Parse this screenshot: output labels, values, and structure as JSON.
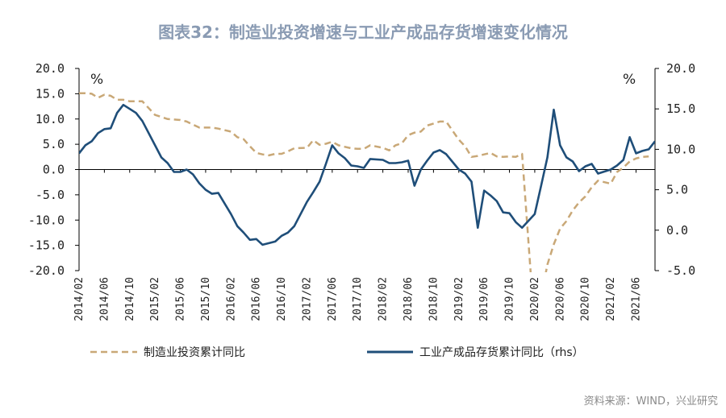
{
  "chart_data": {
    "type": "line",
    "title": "图表32：制造业投资增速与工业产成品存货增速变化情况",
    "left_unit": "%",
    "right_unit": "%",
    "left_axis": {
      "ylim": [
        -20,
        20
      ],
      "ticks": [
        "20.0",
        "15.0",
        "10.0",
        "5.0",
        "0.0",
        "-5.0",
        "-10.0",
        "-15.0",
        "-20.0"
      ]
    },
    "right_axis": {
      "ylim": [
        -5,
        20
      ],
      "ticks": [
        "20.0",
        "15.0",
        "10.0",
        "5.0",
        "0.0",
        "-5.0"
      ]
    },
    "x_labels": [
      "2014/02",
      "2014/06",
      "2014/10",
      "2015/02",
      "2015/06",
      "2015/10",
      "2016/02",
      "2016/06",
      "2016/10",
      "2017/02",
      "2017/06",
      "2017/10",
      "2018/02",
      "2018/06",
      "2018/10",
      "2019/02",
      "2019/06",
      "2019/10",
      "2020/02",
      "2020/06",
      "2020/10",
      "2021/02",
      "2021/06"
    ],
    "series": [
      {
        "name": "制造业投资累计同比",
        "axis": "left",
        "color": "#c9a877",
        "style": "dashed",
        "values": [
          {
            "x": "2014/02",
            "y": 15.1
          },
          {
            "x": "2014/03",
            "y": 15.1
          },
          {
            "x": "2014/04",
            "y": 15.0
          },
          {
            "x": "2014/05",
            "y": 14.2
          },
          {
            "x": "2014/06",
            "y": 14.8
          },
          {
            "x": "2014/07",
            "y": 14.6
          },
          {
            "x": "2014/08",
            "y": 13.8
          },
          {
            "x": "2014/09",
            "y": 13.8
          },
          {
            "x": "2014/10",
            "y": 13.5
          },
          {
            "x": "2014/11",
            "y": 13.5
          },
          {
            "x": "2014/12",
            "y": 13.5
          },
          {
            "x": "2015/02",
            "y": 10.8
          },
          {
            "x": "2015/03",
            "y": 10.4
          },
          {
            "x": "2015/04",
            "y": 10.0
          },
          {
            "x": "2015/05",
            "y": 9.9
          },
          {
            "x": "2015/06",
            "y": 9.8
          },
          {
            "x": "2015/07",
            "y": 9.5
          },
          {
            "x": "2015/08",
            "y": 8.9
          },
          {
            "x": "2015/09",
            "y": 8.3
          },
          {
            "x": "2015/10",
            "y": 8.3
          },
          {
            "x": "2015/11",
            "y": 8.3
          },
          {
            "x": "2015/12",
            "y": 8.1
          },
          {
            "x": "2016/02",
            "y": 7.5
          },
          {
            "x": "2016/03",
            "y": 6.4
          },
          {
            "x": "2016/04",
            "y": 6.0
          },
          {
            "x": "2016/05",
            "y": 4.6
          },
          {
            "x": "2016/06",
            "y": 3.3
          },
          {
            "x": "2016/07",
            "y": 3.0
          },
          {
            "x": "2016/08",
            "y": 2.8
          },
          {
            "x": "2016/09",
            "y": 3.1
          },
          {
            "x": "2016/10",
            "y": 3.1
          },
          {
            "x": "2016/11",
            "y": 3.6
          },
          {
            "x": "2016/12",
            "y": 4.2
          },
          {
            "x": "2017/02",
            "y": 4.3
          },
          {
            "x": "2017/03",
            "y": 5.8
          },
          {
            "x": "2017/04",
            "y": 4.9
          },
          {
            "x": "2017/05",
            "y": 5.1
          },
          {
            "x": "2017/06",
            "y": 5.5
          },
          {
            "x": "2017/07",
            "y": 4.8
          },
          {
            "x": "2017/08",
            "y": 4.5
          },
          {
            "x": "2017/09",
            "y": 4.2
          },
          {
            "x": "2017/10",
            "y": 4.1
          },
          {
            "x": "2017/11",
            "y": 4.1
          },
          {
            "x": "2017/12",
            "y": 4.8
          },
          {
            "x": "2018/02",
            "y": 4.3
          },
          {
            "x": "2018/03",
            "y": 3.8
          },
          {
            "x": "2018/04",
            "y": 4.8
          },
          {
            "x": "2018/05",
            "y": 5.2
          },
          {
            "x": "2018/06",
            "y": 6.8
          },
          {
            "x": "2018/07",
            "y": 7.3
          },
          {
            "x": "2018/08",
            "y": 7.5
          },
          {
            "x": "2018/09",
            "y": 8.7
          },
          {
            "x": "2018/10",
            "y": 9.1
          },
          {
            "x": "2018/11",
            "y": 9.5
          },
          {
            "x": "2018/12",
            "y": 9.5
          },
          {
            "x": "2019/02",
            "y": 5.9
          },
          {
            "x": "2019/03",
            "y": 4.6
          },
          {
            "x": "2019/04",
            "y": 2.5
          },
          {
            "x": "2019/05",
            "y": 2.7
          },
          {
            "x": "2019/06",
            "y": 3.0
          },
          {
            "x": "2019/07",
            "y": 3.3
          },
          {
            "x": "2019/08",
            "y": 2.6
          },
          {
            "x": "2019/09",
            "y": 2.5
          },
          {
            "x": "2019/10",
            "y": 2.6
          },
          {
            "x": "2019/11",
            "y": 2.5
          },
          {
            "x": "2019/12",
            "y": 3.1
          },
          {
            "x": "2020/02",
            "y": -31.5
          },
          {
            "x": "2020/03",
            "y": -25.2
          },
          {
            "x": "2020/04",
            "y": -18.8
          },
          {
            "x": "2020/05",
            "y": -14.8
          },
          {
            "x": "2020/06",
            "y": -11.7
          },
          {
            "x": "2020/07",
            "y": -10.2
          },
          {
            "x": "2020/08",
            "y": -8.1
          },
          {
            "x": "2020/09",
            "y": -6.5
          },
          {
            "x": "2020/10",
            "y": -5.3
          },
          {
            "x": "2020/11",
            "y": -3.5
          },
          {
            "x": "2020/12",
            "y": -2.2
          },
          {
            "x": "2021/02",
            "y": -2.8
          },
          {
            "x": "2021/03",
            "y": -0.5
          },
          {
            "x": "2021/04",
            "y": 0.4
          },
          {
            "x": "2021/05",
            "y": 1.6
          },
          {
            "x": "2021/06",
            "y": 2.2
          },
          {
            "x": "2021/07",
            "y": 2.5
          },
          {
            "x": "2021/08",
            "y": 2.6
          }
        ]
      },
      {
        "name": "工业产成品存货累计同比（rhs）",
        "axis": "right",
        "color": "#1f4e79",
        "style": "solid",
        "values": [
          {
            "x": "2014/02",
            "y": 9.5
          },
          {
            "x": "2014/03",
            "y": 10.5
          },
          {
            "x": "2014/04",
            "y": 11.0
          },
          {
            "x": "2014/05",
            "y": 12.0
          },
          {
            "x": "2014/06",
            "y": 12.5
          },
          {
            "x": "2014/07",
            "y": 12.6
          },
          {
            "x": "2014/08",
            "y": 14.5
          },
          {
            "x": "2014/09",
            "y": 15.5
          },
          {
            "x": "2014/10",
            "y": 15.0
          },
          {
            "x": "2014/11",
            "y": 14.5
          },
          {
            "x": "2014/12",
            "y": 13.5
          },
          {
            "x": "2015/02",
            "y": 10.5
          },
          {
            "x": "2015/03",
            "y": 9.0
          },
          {
            "x": "2015/04",
            "y": 8.3
          },
          {
            "x": "2015/05",
            "y": 7.2
          },
          {
            "x": "2015/06",
            "y": 7.2
          },
          {
            "x": "2015/07",
            "y": 7.5
          },
          {
            "x": "2015/08",
            "y": 6.9
          },
          {
            "x": "2015/09",
            "y": 5.8
          },
          {
            "x": "2015/10",
            "y": 5.0
          },
          {
            "x": "2015/11",
            "y": 4.5
          },
          {
            "x": "2015/12",
            "y": 4.6
          },
          {
            "x": "2016/02",
            "y": 2.0
          },
          {
            "x": "2016/03",
            "y": 0.5
          },
          {
            "x": "2016/04",
            "y": -0.3
          },
          {
            "x": "2016/05",
            "y": -1.2
          },
          {
            "x": "2016/06",
            "y": -1.1
          },
          {
            "x": "2016/07",
            "y": -1.8
          },
          {
            "x": "2016/08",
            "y": -1.6
          },
          {
            "x": "2016/09",
            "y": -1.4
          },
          {
            "x": "2016/10",
            "y": -0.7
          },
          {
            "x": "2016/11",
            "y": -0.3
          },
          {
            "x": "2016/12",
            "y": 0.5
          },
          {
            "x": "2017/02",
            "y": 3.5
          },
          {
            "x": "2017/03",
            "y": 4.7
          },
          {
            "x": "2017/04",
            "y": 6.0
          },
          {
            "x": "2017/05",
            "y": 8.2
          },
          {
            "x": "2017/06",
            "y": 10.5
          },
          {
            "x": "2017/07",
            "y": 9.5
          },
          {
            "x": "2017/08",
            "y": 8.9
          },
          {
            "x": "2017/09",
            "y": 8.0
          },
          {
            "x": "2017/10",
            "y": 7.9
          },
          {
            "x": "2017/11",
            "y": 7.7
          },
          {
            "x": "2017/12",
            "y": 8.8
          },
          {
            "x": "2018/02",
            "y": 8.7
          },
          {
            "x": "2018/03",
            "y": 8.3
          },
          {
            "x": "2018/04",
            "y": 8.3
          },
          {
            "x": "2018/05",
            "y": 8.4
          },
          {
            "x": "2018/06",
            "y": 8.6
          },
          {
            "x": "2018/07",
            "y": 5.5
          },
          {
            "x": "2018/08",
            "y": 7.5
          },
          {
            "x": "2018/09",
            "y": 8.6
          },
          {
            "x": "2018/10",
            "y": 9.6
          },
          {
            "x": "2018/11",
            "y": 9.9
          },
          {
            "x": "2018/12",
            "y": 9.4
          },
          {
            "x": "2019/02",
            "y": 7.5
          },
          {
            "x": "2019/03",
            "y": 7.0
          },
          {
            "x": "2019/04",
            "y": 6.0
          },
          {
            "x": "2019/05",
            "y": 0.3
          },
          {
            "x": "2019/06",
            "y": 4.9
          },
          {
            "x": "2019/07",
            "y": 4.3
          },
          {
            "x": "2019/08",
            "y": 3.6
          },
          {
            "x": "2019/09",
            "y": 2.2
          },
          {
            "x": "2019/10",
            "y": 2.1
          },
          {
            "x": "2019/11",
            "y": 1.0
          },
          {
            "x": "2019/12",
            "y": 0.3
          },
          {
            "x": "2020/02",
            "y": 2.0
          },
          {
            "x": "2020/03",
            "y": 5.5
          },
          {
            "x": "2020/04",
            "y": 9.0
          },
          {
            "x": "2020/05",
            "y": 14.9
          },
          {
            "x": "2020/06",
            "y": 10.5
          },
          {
            "x": "2020/07",
            "y": 9.0
          },
          {
            "x": "2020/08",
            "y": 8.5
          },
          {
            "x": "2020/09",
            "y": 7.3
          },
          {
            "x": "2020/10",
            "y": 7.9
          },
          {
            "x": "2020/11",
            "y": 8.2
          },
          {
            "x": "2020/12",
            "y": 7.0
          },
          {
            "x": "2021/02",
            "y": 7.5
          },
          {
            "x": "2021/03",
            "y": 8.0
          },
          {
            "x": "2021/04",
            "y": 8.7
          },
          {
            "x": "2021/05",
            "y": 11.5
          },
          {
            "x": "2021/06",
            "y": 9.5
          },
          {
            "x": "2021/07",
            "y": 9.8
          },
          {
            "x": "2021/08",
            "y": 10.0
          },
          {
            "x": "2021/09",
            "y": 11.0
          }
        ]
      }
    ],
    "legend": [
      {
        "label": "制造业投资累计同比",
        "style": "dashed",
        "color": "#c9a877"
      },
      {
        "label": "工业产成品存货累计同比（rhs）",
        "style": "solid",
        "color": "#1f4e79"
      }
    ],
    "legend_position": "bottom",
    "source": "资料来源：WIND，兴业研究",
    "grid": false
  }
}
